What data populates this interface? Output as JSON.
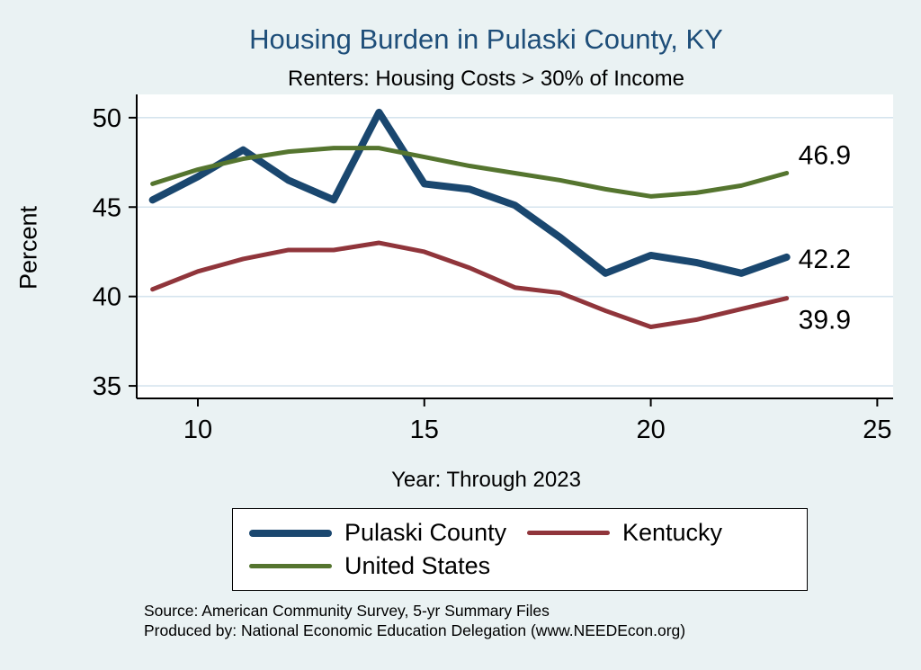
{
  "title": "Housing Burden in Pulaski County, KY",
  "subtitle": "Renters: Housing Costs > 30% of Income",
  "ylabel": "Percent",
  "xlabel": "Year: Through 2023",
  "source_line1": "Source: American Community Survey, 5-yr Summary Files",
  "source_line2": "Produced by: National Economic Education Delegation (www.NEEDEcon.org)",
  "colors": {
    "background": "#eaf2f3",
    "plot_background": "#ffffff",
    "grid": "#d6e4ee",
    "axis": "#000000",
    "title": "#1e4e79",
    "pulaski": "#1a476f",
    "kentucky": "#90353b",
    "united_states": "#55752f"
  },
  "chart_data": {
    "type": "line",
    "title": "Housing Burden in Pulaski County, KY",
    "subtitle": "Renters: Housing Costs > 30% of Income",
    "xlabel": "Year: Through 2023",
    "ylabel": "Percent",
    "grid": true,
    "legend_position": "bottom",
    "xlim": [
      8.65,
      25.35
    ],
    "ylim": [
      34.3,
      51.3
    ],
    "xticks": [
      10,
      15,
      20,
      25
    ],
    "yticks": [
      35,
      40,
      45,
      50
    ],
    "x": [
      9,
      10,
      11,
      12,
      13,
      14,
      15,
      16,
      17,
      18,
      19,
      20,
      21,
      22,
      23
    ],
    "series": [
      {
        "name": "Pulaski County",
        "color": "#1a476f",
        "width": 8,
        "values": [
          45.4,
          46.7,
          48.2,
          46.5,
          45.4,
          50.3,
          46.3,
          46.0,
          45.1,
          43.3,
          41.3,
          42.3,
          41.9,
          41.3,
          42.2
        ],
        "end_label": "42.2",
        "end_label_dy": 2
      },
      {
        "name": "Kentucky",
        "color": "#90353b",
        "width": 5,
        "values": [
          40.4,
          41.4,
          42.1,
          42.6,
          42.6,
          43.0,
          42.5,
          41.6,
          40.5,
          40.2,
          39.2,
          38.3,
          38.7,
          39.3,
          39.9
        ],
        "end_label": "39.9",
        "end_label_dy": 24
      },
      {
        "name": "United States",
        "color": "#55752f",
        "width": 5,
        "values": [
          46.3,
          47.1,
          47.7,
          48.1,
          48.3,
          48.3,
          47.8,
          47.3,
          46.9,
          46.5,
          46.0,
          45.6,
          45.8,
          46.2,
          46.9
        ],
        "end_label": "46.9",
        "end_label_dy": -20
      }
    ]
  }
}
